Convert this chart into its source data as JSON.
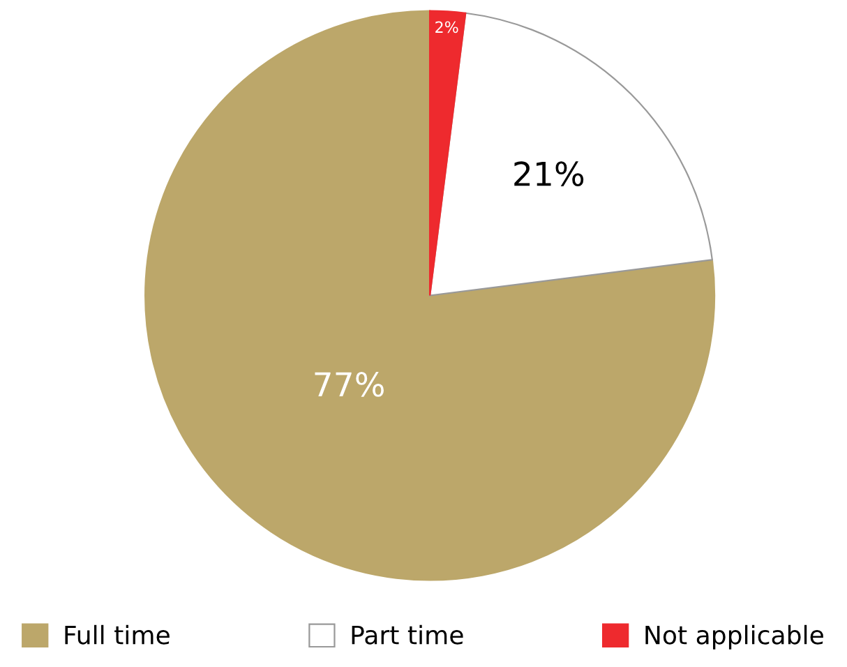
{
  "chart_data": {
    "type": "pie",
    "categories": [
      "Full time",
      "Part time",
      "Not applicable"
    ],
    "values": [
      77,
      21,
      2
    ],
    "colors": [
      "#bca76a",
      "#ffffff",
      "#ee2a2e"
    ],
    "value_labels": [
      "77%",
      "21%",
      "2%"
    ],
    "legend": "bottom"
  }
}
